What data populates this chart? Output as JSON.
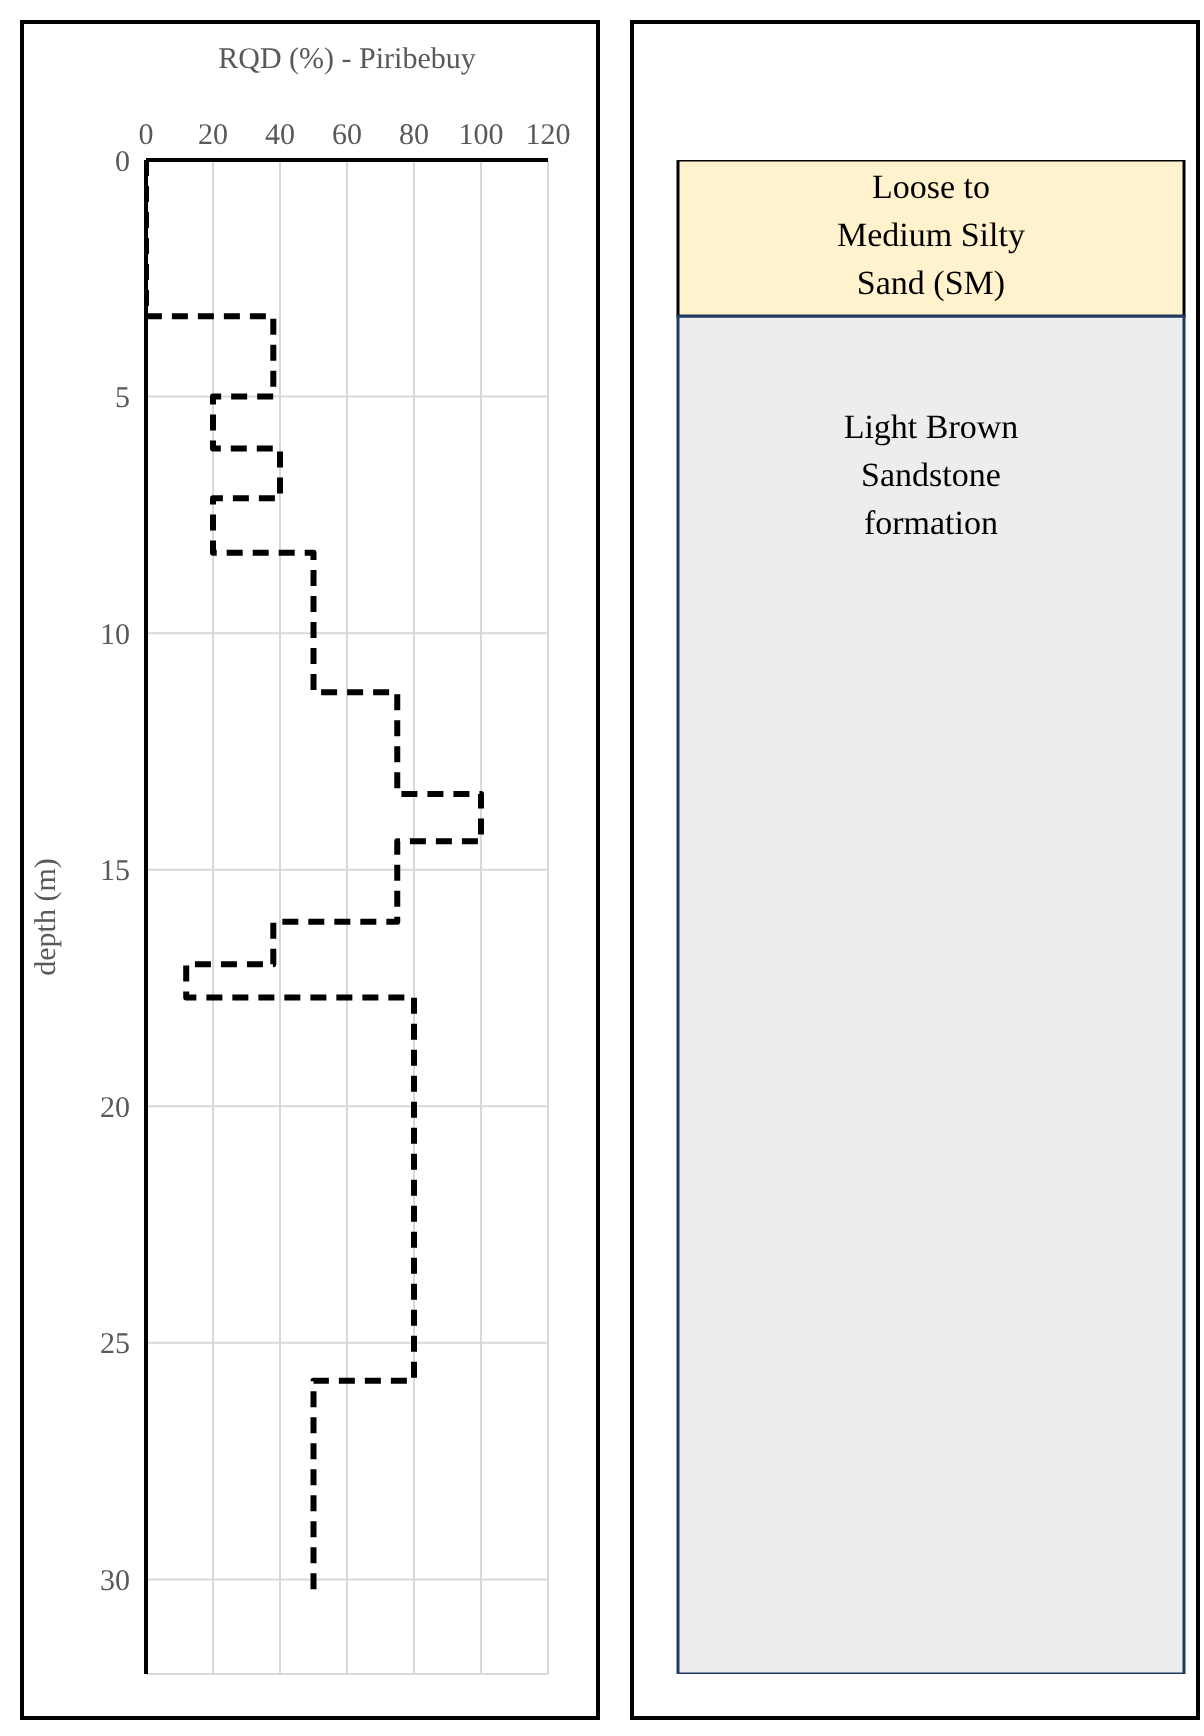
{
  "chart_data": [
    {
      "type": "line",
      "xlabel": "RQD (%) - Piribebuy",
      "ylabel": "depth (m)",
      "xlim": [
        0,
        120
      ],
      "xticks": [
        0,
        20,
        40,
        60,
        80,
        100,
        120
      ],
      "ylim": [
        32,
        0
      ],
      "yticks": [
        0,
        5,
        10,
        15,
        20,
        25,
        30
      ],
      "grid": true,
      "marker": "none",
      "line_style": "dashed",
      "series": [
        {
          "color": "#000000",
          "x": [
            0,
            0,
            38,
            38,
            20,
            20,
            40,
            40,
            20,
            20,
            50,
            50,
            75,
            75,
            100,
            100,
            75,
            75,
            38,
            38,
            12,
            12,
            80,
            80,
            50,
            50
          ],
          "values": [
            0,
            3.3,
            3.3,
            5.0,
            5.0,
            6.1,
            6.1,
            7.15,
            7.15,
            8.3,
            8.3,
            11.25,
            11.25,
            13.4,
            13.4,
            14.4,
            14.4,
            16.1,
            16.1,
            17.0,
            17.0,
            17.7,
            17.7,
            25.8,
            25.8,
            30.4
          ]
        }
      ]
    },
    {
      "type": "bar",
      "stacked": true,
      "categories": [
        null
      ],
      "ylim": [
        32,
        0
      ],
      "tick_labels": false,
      "series": [
        {
          "name": "Loose to Medium Silty Sand (SM)",
          "color": "#fff2cc",
          "values": [
            3.3
          ]
        },
        {
          "name": "Light Brown Sandstone formation",
          "color": "#ededed",
          "values": [
            28.7
          ]
        }
      ]
    }
  ]
}
